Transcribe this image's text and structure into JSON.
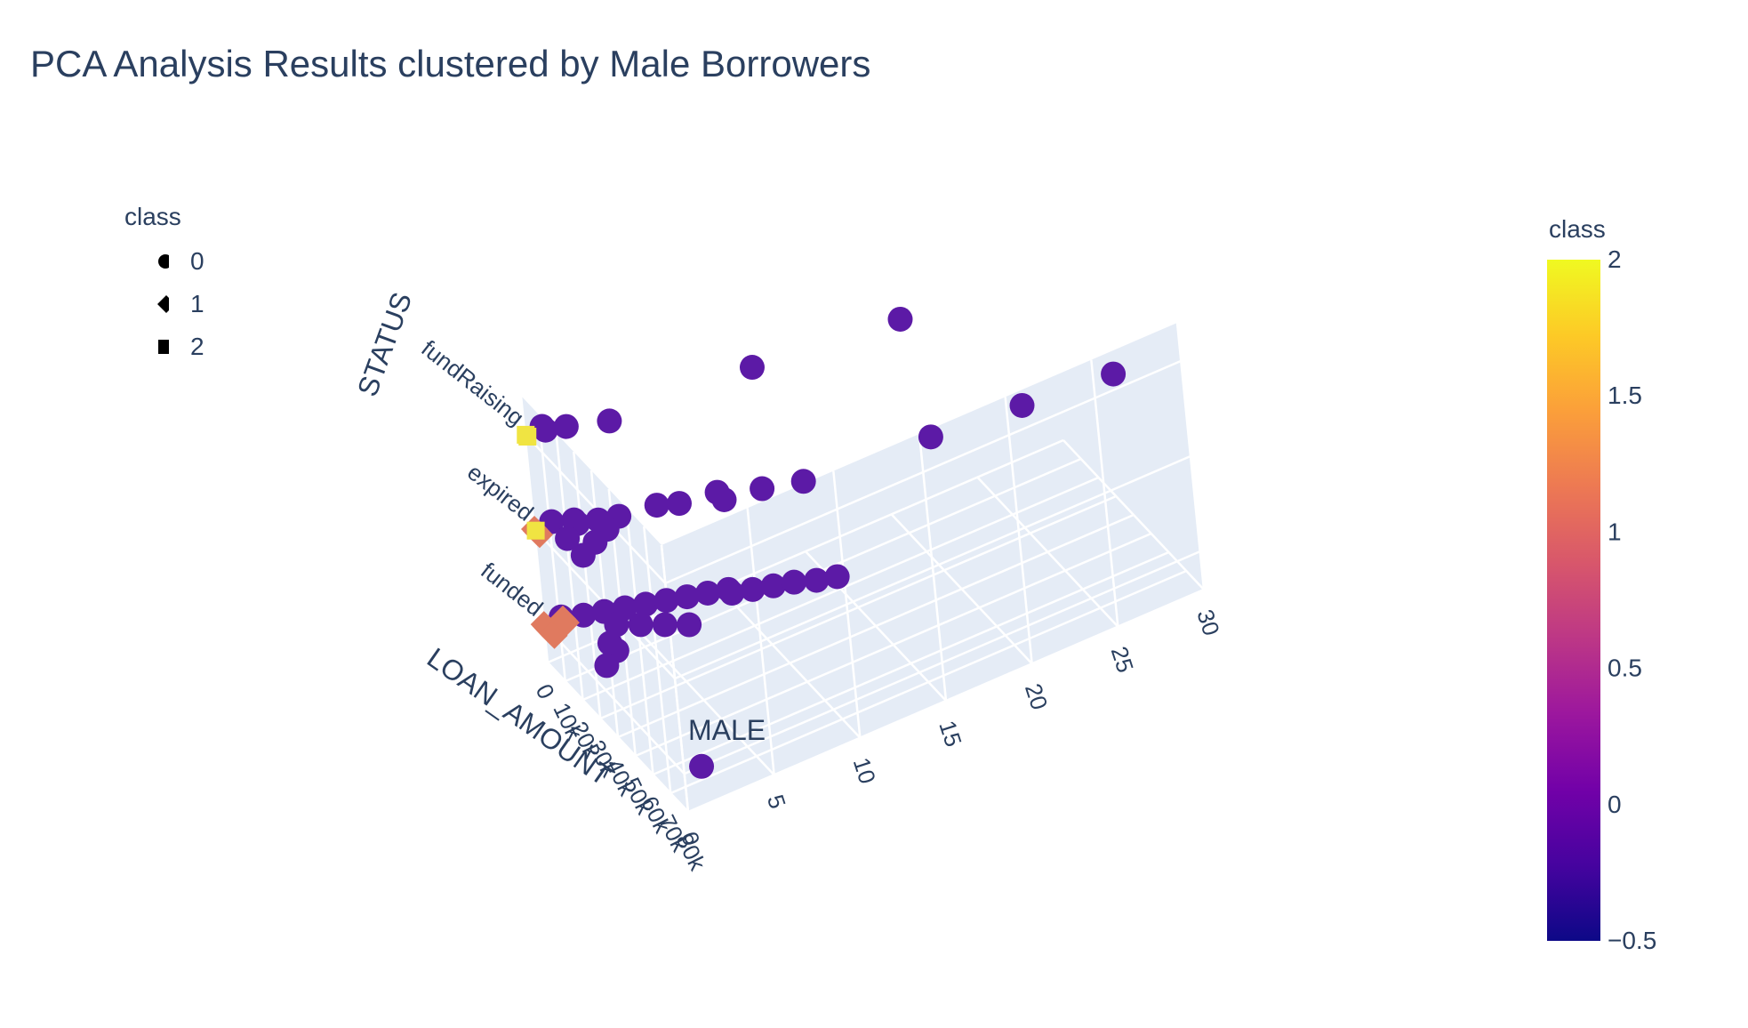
{
  "title": "PCA Analysis Results clustered by Male Borrowers",
  "legend": {
    "title": "class",
    "items": [
      {
        "label": "0",
        "symbol": "circle"
      },
      {
        "label": "1",
        "symbol": "diamond"
      },
      {
        "label": "2",
        "symbol": "square"
      }
    ]
  },
  "colorbar": {
    "title": "class",
    "ticks": [
      "2",
      "1.5",
      "1",
      "0.5",
      "0",
      "−0.5"
    ],
    "tick_values": [
      2,
      1.5,
      1,
      0.5,
      0,
      -0.5
    ],
    "range": [
      -0.5,
      2
    ],
    "colors": [
      "#0d0887",
      "#46039f",
      "#7201a8",
      "#9c179e",
      "#bd3786",
      "#d8576b",
      "#ed7953",
      "#fb9f3a",
      "#fdca26",
      "#f0f921"
    ]
  },
  "chart_data": {
    "type": "scatter3d",
    "title": "PCA Analysis Results clustered by Male Borrowers",
    "axes": {
      "x": {
        "label": "LOAN_AMOUNT",
        "ticks": [
          "0",
          "10k",
          "20k",
          "30k",
          "40k",
          "50k",
          "60k",
          "70k",
          "80k"
        ],
        "range": [
          0,
          80000
        ]
      },
      "y": {
        "label": "MALE",
        "ticks": [
          "0",
          "5",
          "10",
          "15",
          "20",
          "25",
          "30"
        ],
        "range": [
          0,
          30
        ]
      },
      "z": {
        "label": "STATUS",
        "ticks": [
          "funded",
          "expired",
          "fundRaising"
        ],
        "categories": [
          "funded",
          "expired",
          "fundRaising"
        ]
      }
    },
    "series": [
      {
        "name": "0",
        "symbol": "circle",
        "color": "#5c1aa6",
        "points": [
          [
            0,
            1,
            "fundRaising"
          ],
          [
            2000,
            1,
            "fundRaising"
          ],
          [
            4000,
            2,
            "fundRaising"
          ],
          [
            9000,
            4,
            "fundRaising"
          ],
          [
            12000,
            12,
            "fundRaising"
          ],
          [
            18000,
            20,
            "fundRaising"
          ],
          [
            0,
            1,
            "expired"
          ],
          [
            3000,
            2,
            "expired"
          ],
          [
            5000,
            2,
            "expired"
          ],
          [
            7000,
            3,
            "expired"
          ],
          [
            9000,
            4,
            "expired"
          ],
          [
            11000,
            6,
            "expired"
          ],
          [
            14000,
            7,
            "expired"
          ],
          [
            16000,
            9,
            "expired"
          ],
          [
            20000,
            9,
            "expired"
          ],
          [
            22000,
            11,
            "expired"
          ],
          [
            26000,
            13,
            "expired"
          ],
          [
            30000,
            20,
            "expired"
          ],
          [
            33000,
            25,
            "expired"
          ],
          [
            36000,
            30,
            "expired"
          ],
          [
            12000,
            3,
            "expired"
          ],
          [
            15000,
            2,
            "expired"
          ],
          [
            18000,
            1,
            "expired"
          ],
          [
            9000,
            1,
            "expired"
          ],
          [
            0,
            1,
            "funded"
          ],
          [
            3000,
            2,
            "funded"
          ],
          [
            5000,
            3,
            "funded"
          ],
          [
            7000,
            4,
            "funded"
          ],
          [
            9000,
            5,
            "funded"
          ],
          [
            11000,
            6,
            "funded"
          ],
          [
            13000,
            7,
            "funded"
          ],
          [
            15000,
            8,
            "funded"
          ],
          [
            17000,
            9,
            "funded"
          ],
          [
            19000,
            9,
            "funded"
          ],
          [
            21000,
            10,
            "funded"
          ],
          [
            23000,
            11,
            "funded"
          ],
          [
            25000,
            12,
            "funded"
          ],
          [
            28000,
            13,
            "funded"
          ],
          [
            30000,
            14,
            "funded"
          ],
          [
            12000,
            3,
            "funded"
          ],
          [
            16000,
            4,
            "funded"
          ],
          [
            20000,
            5,
            "funded"
          ],
          [
            24000,
            6,
            "funded"
          ],
          [
            18000,
            2,
            "funded"
          ],
          [
            22000,
            2,
            "funded"
          ],
          [
            26000,
            1,
            "funded"
          ],
          [
            80000,
            1,
            "funded"
          ]
        ]
      },
      {
        "name": "1",
        "symbol": "diamond",
        "color": "#e07a5f",
        "points": [
          [
            0,
            0,
            "funded"
          ],
          [
            1000,
            0,
            "funded"
          ],
          [
            2000,
            0,
            "funded"
          ],
          [
            3000,
            0,
            "funded"
          ],
          [
            4000,
            0,
            "funded"
          ],
          [
            5000,
            0,
            "funded"
          ],
          [
            6000,
            0,
            "funded"
          ],
          [
            1000,
            1,
            "funded"
          ],
          [
            2000,
            1,
            "funded"
          ],
          [
            3000,
            1,
            "funded"
          ],
          [
            0,
            0,
            "expired"
          ],
          [
            1000,
            0,
            "expired"
          ],
          [
            2000,
            0,
            "expired"
          ],
          [
            3000,
            0,
            "expired"
          ]
        ]
      },
      {
        "name": "2",
        "symbol": "square",
        "color": "#f0e442",
        "points": [
          [
            500,
            0,
            "fundRaising"
          ],
          [
            1500,
            0,
            "fundRaising"
          ],
          [
            800,
            0,
            "expired"
          ]
        ]
      }
    ]
  }
}
